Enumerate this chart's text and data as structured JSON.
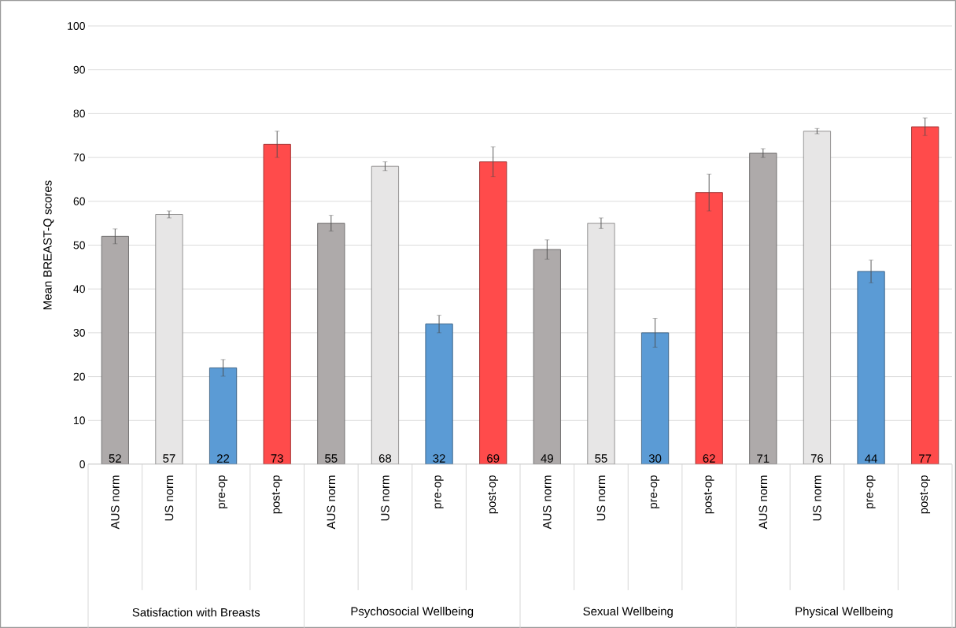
{
  "chart_data": {
    "type": "bar",
    "ylabel": "Mean BREAST-Q scores",
    "categories": [
      "AUS norm",
      "US norm",
      "pre-op",
      "post-op",
      "AUS norm",
      "US norm",
      "pre-op",
      "post-op",
      "AUS norm",
      "US norm",
      "pre-op",
      "post-op",
      "AUS norm",
      "US norm",
      "pre-op",
      "post-op"
    ],
    "values": [
      52,
      57,
      22,
      73,
      55,
      68,
      32,
      69,
      49,
      55,
      30,
      62,
      71,
      76,
      44,
      77
    ],
    "errors": [
      1.7,
      0.8,
      1.9,
      3,
      1.8,
      1,
      2,
      3.4,
      2.2,
      1.2,
      3.3,
      4.2,
      1,
      0.6,
      2.6,
      2
    ],
    "colors": [
      "#aeaaaa",
      "#e7e6e6",
      "#5b9bd5",
      "#ff4b4b",
      "#aeaaaa",
      "#e7e6e6",
      "#5b9bd5",
      "#ff4b4b",
      "#aeaaaa",
      "#e7e6e6",
      "#5b9bd5",
      "#ff4b4b",
      "#aeaaaa",
      "#e7e6e6",
      "#5b9bd5",
      "#ff4b4b"
    ],
    "annotations": [
      "Satisfaction with Breasts",
      "Psychosocial Wellbeing",
      "Sexual Wellbeing",
      "Physical Wellbeing"
    ],
    "ylim": [
      0,
      100
    ],
    "yticks": [
      0,
      10,
      20,
      30,
      40,
      50,
      60,
      70,
      80,
      90,
      100
    ],
    "grid": "y",
    "data_labels": true
  }
}
